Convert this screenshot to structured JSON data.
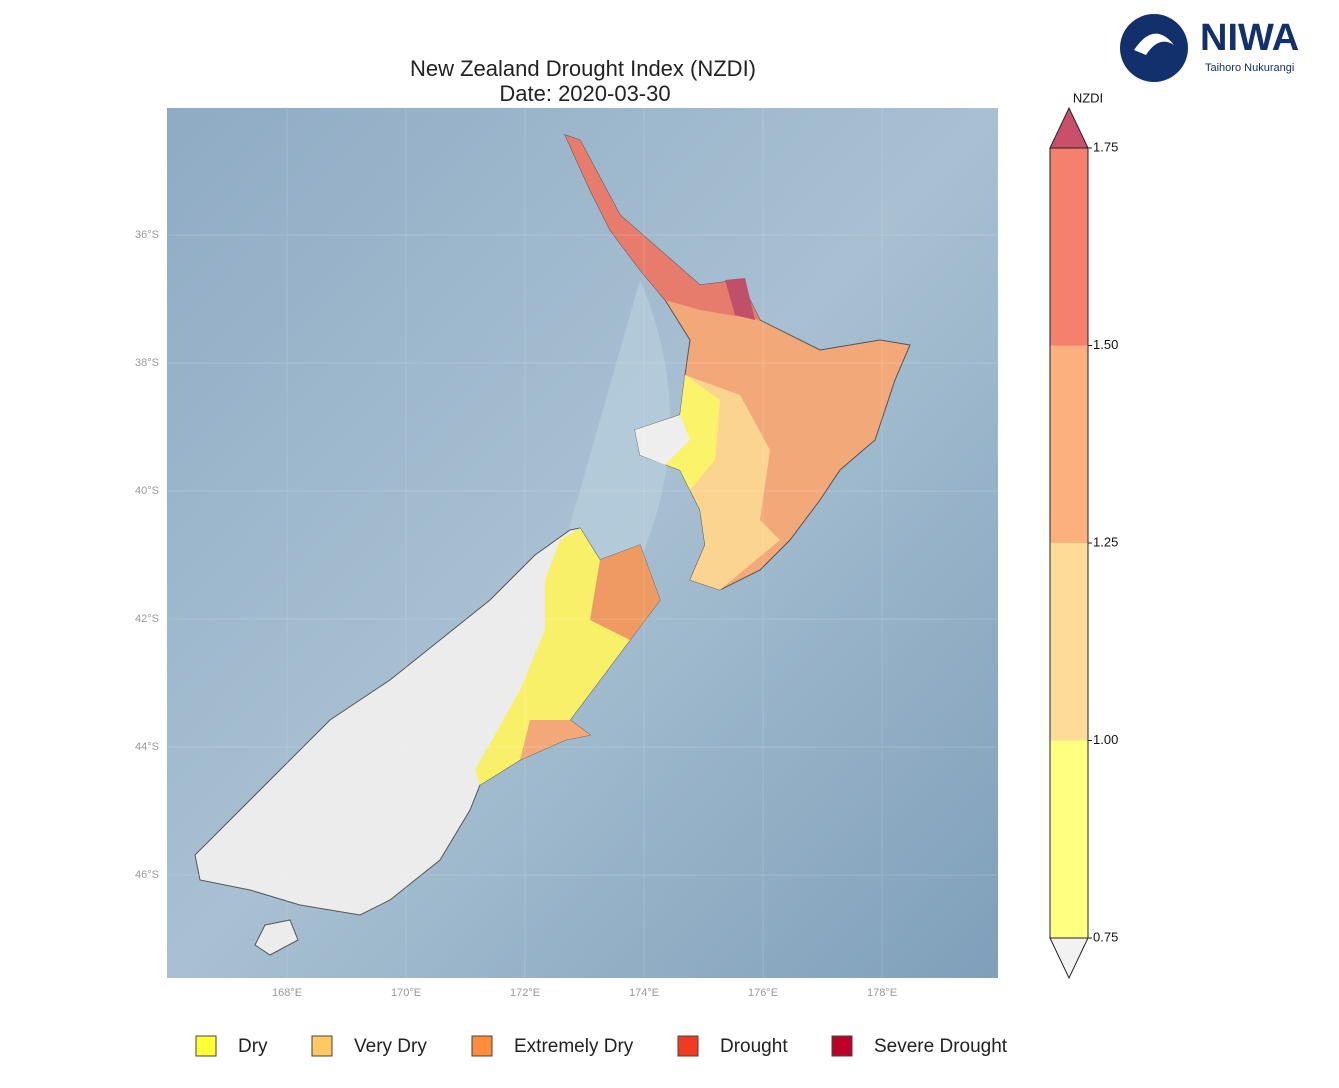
{
  "logo": {
    "name": "NIWA",
    "subtitle": "Taihoro Nukurangi"
  },
  "title": "New Zealand Drought Index (NZDI)",
  "subtitle": "Date: 2020-03-30",
  "map": {
    "lat_labels": [
      "36°S",
      "38°S",
      "40°S",
      "42°S",
      "44°S",
      "46°S"
    ],
    "lon_labels": [
      "168°E",
      "170°E",
      "172°E",
      "174°E",
      "176°E",
      "178°E"
    ]
  },
  "colorbar": {
    "label": "NZDI",
    "ticks": [
      "0.75",
      "1.00",
      "1.25",
      "1.50",
      "1.75"
    ],
    "colors": [
      "#ffff80",
      "#fddc96",
      "#fcb07e",
      "#f4806d"
    ],
    "over_color": "#c8506a",
    "under_color": "#f2f2f2"
  },
  "legend": [
    {
      "label": "Dry",
      "color": "#ffff33"
    },
    {
      "label": "Very Dry",
      "color": "#fec965"
    },
    {
      "label": "Extremely Dry",
      "color": "#fd8d3c"
    },
    {
      "label": "Drought",
      "color": "#f03b20"
    },
    {
      "label": "Severe Drought",
      "color": "#bd0026"
    }
  ]
}
